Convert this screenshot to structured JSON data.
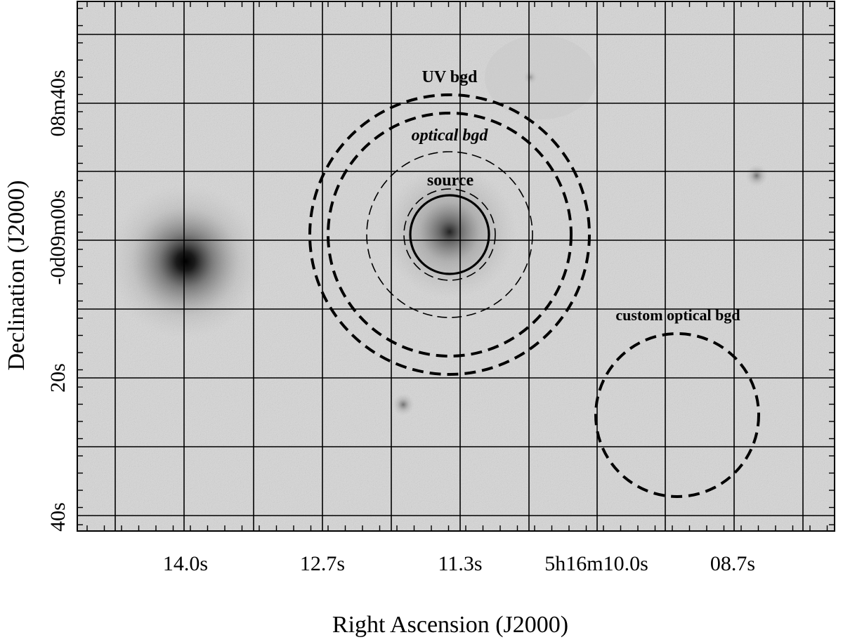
{
  "figure": {
    "xlabel": "Right Ascension (J2000)",
    "ylabel": "Declination (J2000)",
    "x_tick_labels": [
      "14.0s",
      "12.7s",
      "11.3s",
      "5h16m10.0s",
      "08.7s"
    ],
    "y_tick_labels": [
      "40s",
      "20s",
      "-0d09m00s",
      "08m40s"
    ]
  },
  "regions": {
    "uv_bgd_label": "UV bgd",
    "optical_bgd_label": "optical bgd",
    "source_label": "source",
    "custom_optical_bgd_label": "custom optical bgd"
  },
  "image": {
    "colormap": "inverted grayscale",
    "grid": true,
    "stars": [
      {
        "name": "bright-star-left",
        "intensity": 1.0
      },
      {
        "name": "target-source",
        "intensity": 0.8
      },
      {
        "name": "faint-star-lower",
        "intensity": 0.35
      },
      {
        "name": "faint-star-right",
        "intensity": 0.35
      }
    ]
  }
}
